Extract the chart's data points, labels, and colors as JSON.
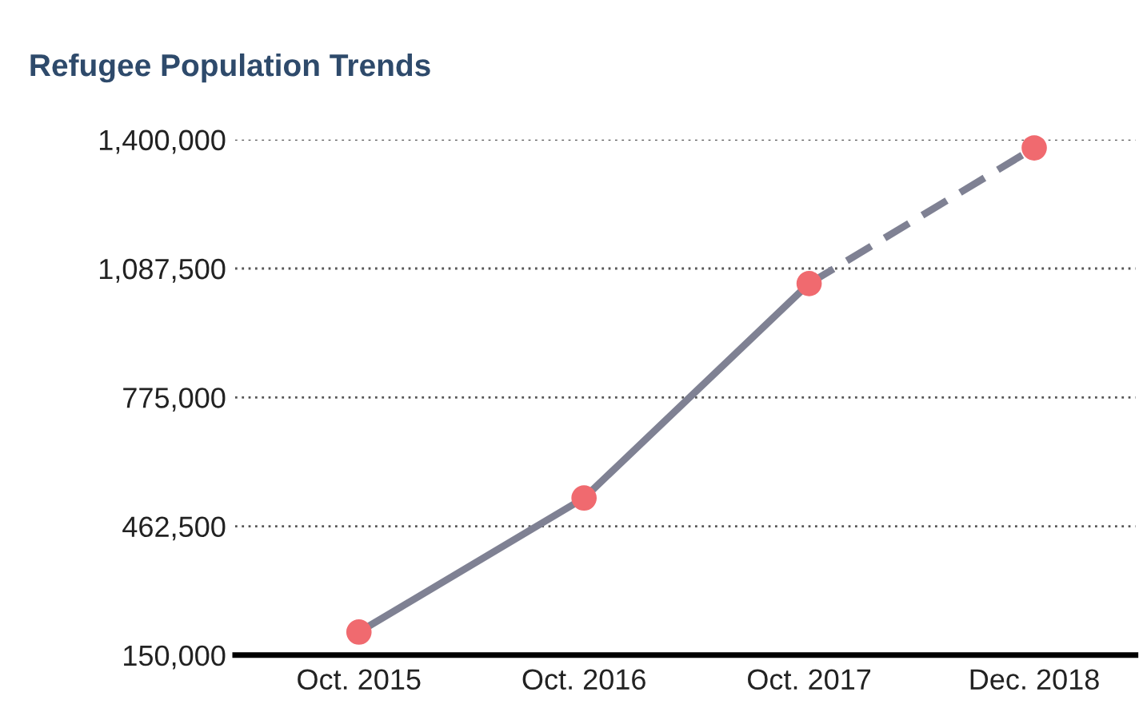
{
  "chart_data": {
    "type": "line",
    "title": "Refugee Population Trends",
    "categories": [
      "Oct. 2015",
      "Oct. 2016",
      "Oct. 2017",
      "Dec. 2018"
    ],
    "series": [
      {
        "color": "#7f8193",
        "line_style": "solid",
        "values": [
          206000,
          531000,
          1051000,
          null
        ]
      },
      {
        "color": "#7f8193",
        "line_style": "dashed",
        "values": [
          null,
          null,
          1051000,
          1380000
        ]
      },
      {
        "type": "scatter",
        "color": "#f06a6f",
        "marker": "circle",
        "values": [
          206000,
          531000,
          1051000,
          1380000
        ]
      }
    ],
    "ylim": [
      150000,
      1400000
    ],
    "yticks": [
      {
        "value": 150000,
        "label": "150,000"
      },
      {
        "value": 462500,
        "label": "462,500"
      },
      {
        "value": 775000,
        "label": "775,000"
      },
      {
        "value": 1087500,
        "label": "1,087,500"
      },
      {
        "value": 1400000,
        "label": "1,400,000"
      }
    ],
    "grid": "y",
    "legend": false
  }
}
